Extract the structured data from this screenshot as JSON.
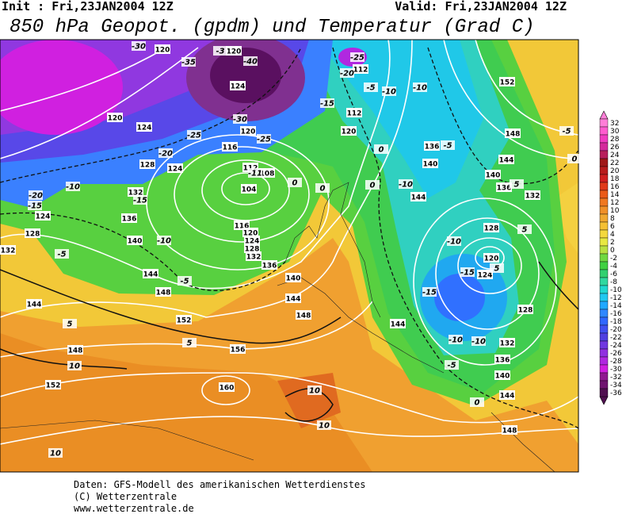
{
  "header": {
    "init": "Init : Fri,23JAN2004 12Z",
    "valid": "Valid: Fri,23JAN2004 12Z",
    "title": "850 hPa Geopot. (gpdm) und Temperatur (Grad C)"
  },
  "geopotential_labels": [
    "120",
    "120",
    "124",
    "120",
    "124",
    "116",
    "120",
    "128",
    "124",
    "112",
    "108",
    "104",
    "132",
    "136",
    "140",
    "116",
    "120",
    "124",
    "128",
    "132",
    "136",
    "140",
    "144",
    "148",
    "144",
    "148",
    "152",
    "156",
    "160",
    "144",
    "148",
    "152",
    "128",
    "124",
    "132",
    "112",
    "120",
    "112",
    "136",
    "140",
    "144",
    "144",
    "152",
    "148",
    "144",
    "140",
    "136",
    "132",
    "128",
    "120",
    "124",
    "128",
    "132",
    "136",
    "140",
    "144",
    "148"
  ],
  "temperature_labels": [
    "-30",
    "-35",
    "-3",
    "-40",
    "-25",
    "-20",
    "-5",
    "-10",
    "-10",
    "-15",
    "-30",
    "-25",
    "-25",
    "-20",
    "-10",
    "-20",
    "-15",
    "-15",
    "-10",
    "-5",
    "-5",
    "0",
    "-5",
    "0",
    "0",
    "0",
    "-10",
    "5",
    "5",
    "-10",
    "-15",
    "5",
    "-15",
    "-10",
    "-10",
    "-5",
    "0",
    "5",
    "5",
    "10",
    "10",
    "10",
    "10",
    "-5",
    "0",
    "-11"
  ],
  "legend": {
    "labels": [
      "32",
      "30",
      "28",
      "26",
      "24",
      "22",
      "20",
      "18",
      "16",
      "14",
      "12",
      "10",
      "8",
      "6",
      "4",
      "2",
      "0",
      "-2",
      "-4",
      "-6",
      "-8",
      "-10",
      "-12",
      "-14",
      "-16",
      "-18",
      "-20",
      "-22",
      "-24",
      "-26",
      "-28",
      "-30",
      "-32",
      "-34",
      "-36"
    ],
    "colors": [
      "#ff7fd8",
      "#ff5ccf",
      "#f03cc0",
      "#d42a9c",
      "#b8205c",
      "#a01818",
      "#b81c1c",
      "#d02020",
      "#e03a1a",
      "#ea5a18",
      "#f07820",
      "#f09028",
      "#f0a830",
      "#f4c034",
      "#f4d83c",
      "#e8e840",
      "#b8e040",
      "#70d840",
      "#40d040",
      "#30d070",
      "#30d8a0",
      "#20d8d0",
      "#20c8f0",
      "#20a8ff",
      "#3088ff",
      "#3068ff",
      "#4050f0",
      "#5040e0",
      "#7038e0",
      "#9030e0",
      "#b028e0",
      "#d020e0",
      "#901890",
      "#701470",
      "#501050"
    ]
  },
  "footer": {
    "line1": "Daten: GFS-Modell des amerikanischen Wetterdienstes",
    "line2": "(C) Wetterzentrale",
    "line3": "www.wetterzentrale.de"
  }
}
